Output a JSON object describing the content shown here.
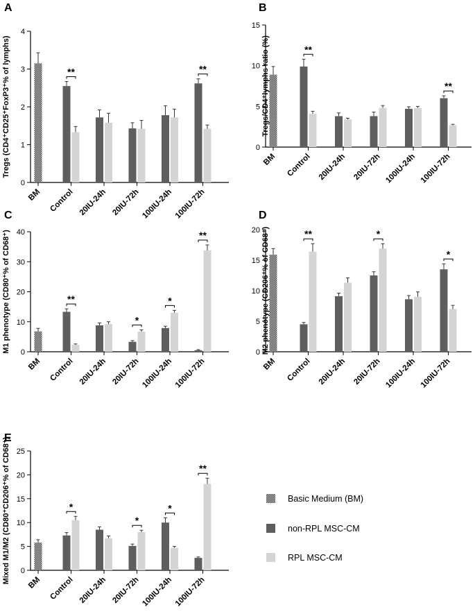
{
  "colors": {
    "bm": "#8a8a8a",
    "non_rpl": "#5e5e5e",
    "rpl": "#d4d4d4"
  },
  "legend": {
    "items": [
      {
        "key": "bm",
        "label": "Basic Medium (BM)"
      },
      {
        "key": "non_rpl",
        "label": "non-RPL MSC-CM"
      },
      {
        "key": "rpl",
        "label": "RPL MSC-CM"
      }
    ]
  },
  "chart_data": [
    {
      "id": "A",
      "type": "bar",
      "letter": "A",
      "ylabel": "Tregs (CD4⁺CD25⁺FoxP3⁺% of lymphs)",
      "ylim": [
        0,
        4
      ],
      "yticks": [
        0,
        1,
        2,
        3,
        4
      ],
      "categories": [
        "BM",
        "Control",
        "20IU-24h",
        "20IU-72h",
        "100IU-24h",
        "100IU-72h"
      ],
      "bm": {
        "value": 3.15,
        "error": 0.28
      },
      "series": [
        {
          "name": "non-RPL MSC-CM",
          "key": "non_rpl",
          "values": [
            null,
            2.55,
            1.72,
            1.43,
            1.78,
            2.62
          ],
          "errors": [
            null,
            0.12,
            0.2,
            0.15,
            0.25,
            0.12
          ]
        },
        {
          "name": "RPL MSC-CM",
          "key": "rpl",
          "values": [
            null,
            1.33,
            1.58,
            1.42,
            1.72,
            1.42
          ],
          "errors": [
            null,
            0.15,
            0.25,
            0.22,
            0.22,
            0.1
          ]
        }
      ],
      "significance": [
        {
          "category": "Control",
          "label": "**"
        },
        {
          "category": "100IU-72h",
          "label": "**"
        }
      ]
    },
    {
      "id": "B",
      "type": "bar",
      "letter": "B",
      "ylabel": "Tregs/CD4⁺lymphs ratio (%)",
      "ylim": [
        0,
        15
      ],
      "yticks": [
        0,
        5,
        10,
        15
      ],
      "categories": [
        "BM",
        "Control",
        "20IU-24h",
        "20IU-72h",
        "100IU-24h",
        "100IU-72h"
      ],
      "bm": {
        "value": 8.9,
        "error": 1.0
      },
      "series": [
        {
          "name": "non-RPL MSC-CM",
          "key": "non_rpl",
          "values": [
            null,
            9.9,
            3.8,
            3.8,
            4.7,
            6.0
          ],
          "errors": [
            null,
            0.9,
            0.4,
            0.5,
            0.25,
            0.3
          ]
        },
        {
          "name": "RPL MSC-CM",
          "key": "rpl",
          "values": [
            null,
            4.1,
            3.4,
            4.8,
            4.8,
            2.7
          ],
          "errors": [
            null,
            0.3,
            0.15,
            0.3,
            0.2,
            0.1
          ]
        }
      ],
      "significance": [
        {
          "category": "Control",
          "label": "**"
        },
        {
          "category": "100IU-72h",
          "label": "**"
        }
      ]
    },
    {
      "id": "C",
      "type": "bar",
      "letter": "C",
      "ylabel": "M1 phenotype (CD80⁺% of CD68⁺)",
      "ylim": [
        0,
        40
      ],
      "yticks": [
        0,
        10,
        20,
        30,
        40
      ],
      "categories": [
        "BM",
        "Control",
        "20IU-24h",
        "20IU-72h",
        "100IU-24h",
        "100IU-72h"
      ],
      "bm": {
        "value": 6.8,
        "error": 1.0
      },
      "series": [
        {
          "name": "non-RPL MSC-CM",
          "key": "non_rpl",
          "values": [
            null,
            13.3,
            8.8,
            3.3,
            7.9,
            0.5
          ],
          "errors": [
            null,
            1.0,
            0.8,
            0.4,
            0.6,
            0.2
          ]
        },
        {
          "name": "RPL MSC-CM",
          "key": "rpl",
          "values": [
            null,
            2.3,
            9.2,
            6.7,
            13.0,
            33.8
          ],
          "errors": [
            null,
            0.3,
            0.8,
            0.6,
            0.8,
            1.8
          ]
        }
      ],
      "significance": [
        {
          "category": "Control",
          "label": "**"
        },
        {
          "category": "20IU-72h",
          "label": "*"
        },
        {
          "category": "100IU-24h",
          "label": "*"
        },
        {
          "category": "100IU-72h",
          "label": "**"
        }
      ]
    },
    {
      "id": "D",
      "type": "bar",
      "letter": "D",
      "ylabel": "M2 phenotype (CD206⁺% of CD68⁺)",
      "ylim": [
        0,
        20
      ],
      "yticks": [
        0,
        5,
        10,
        15,
        20
      ],
      "categories": [
        "BM",
        "Control",
        "20IU-24h",
        "20IU-72h",
        "100IU-24h",
        "100IU-72h"
      ],
      "bm": {
        "value": 15.9,
        "error": 1.0
      },
      "series": [
        {
          "name": "non-RPL MSC-CM",
          "key": "non_rpl",
          "values": [
            null,
            4.5,
            9.1,
            12.5,
            8.6,
            13.5
          ],
          "errors": [
            null,
            0.3,
            0.5,
            0.6,
            0.6,
            0.9
          ]
        },
        {
          "name": "RPL MSC-CM",
          "key": "rpl",
          "values": [
            null,
            16.4,
            11.3,
            16.9,
            9.0,
            7.0
          ],
          "errors": [
            null,
            1.3,
            0.8,
            0.8,
            0.8,
            0.6
          ]
        }
      ],
      "significance": [
        {
          "category": "Control",
          "label": "**"
        },
        {
          "category": "20IU-72h",
          "label": "*"
        },
        {
          "category": "100IU-72h",
          "label": "*"
        }
      ]
    },
    {
      "id": "E",
      "type": "bar",
      "letter": "E",
      "ylabel": "Mixed M1/M2 (CD80⁺CD206⁺% of CD68⁺)",
      "ylim": [
        0,
        25
      ],
      "yticks": [
        0,
        5,
        10,
        15,
        20,
        25
      ],
      "categories": [
        "BM",
        "Control",
        "20IU-24h",
        "20IU-72h",
        "100IU-24h",
        "100IU-72h"
      ],
      "bm": {
        "value": 5.8,
        "error": 0.6
      },
      "series": [
        {
          "name": "non-RPL MSC-CM",
          "key": "non_rpl",
          "values": [
            null,
            7.3,
            8.5,
            5.1,
            10.0,
            2.6
          ],
          "errors": [
            null,
            0.6,
            0.6,
            0.4,
            1.0,
            0.2
          ]
        },
        {
          "name": "RPL MSC-CM",
          "key": "rpl",
          "values": [
            null,
            10.5,
            6.7,
            8.0,
            4.7,
            18.1
          ],
          "errors": [
            null,
            0.8,
            0.5,
            0.4,
            0.3,
            1.2
          ]
        }
      ],
      "significance": [
        {
          "category": "Control",
          "label": "*"
        },
        {
          "category": "20IU-72h",
          "label": "*"
        },
        {
          "category": "100IU-24h",
          "label": "*"
        },
        {
          "category": "100IU-72h",
          "label": "**"
        }
      ]
    }
  ]
}
